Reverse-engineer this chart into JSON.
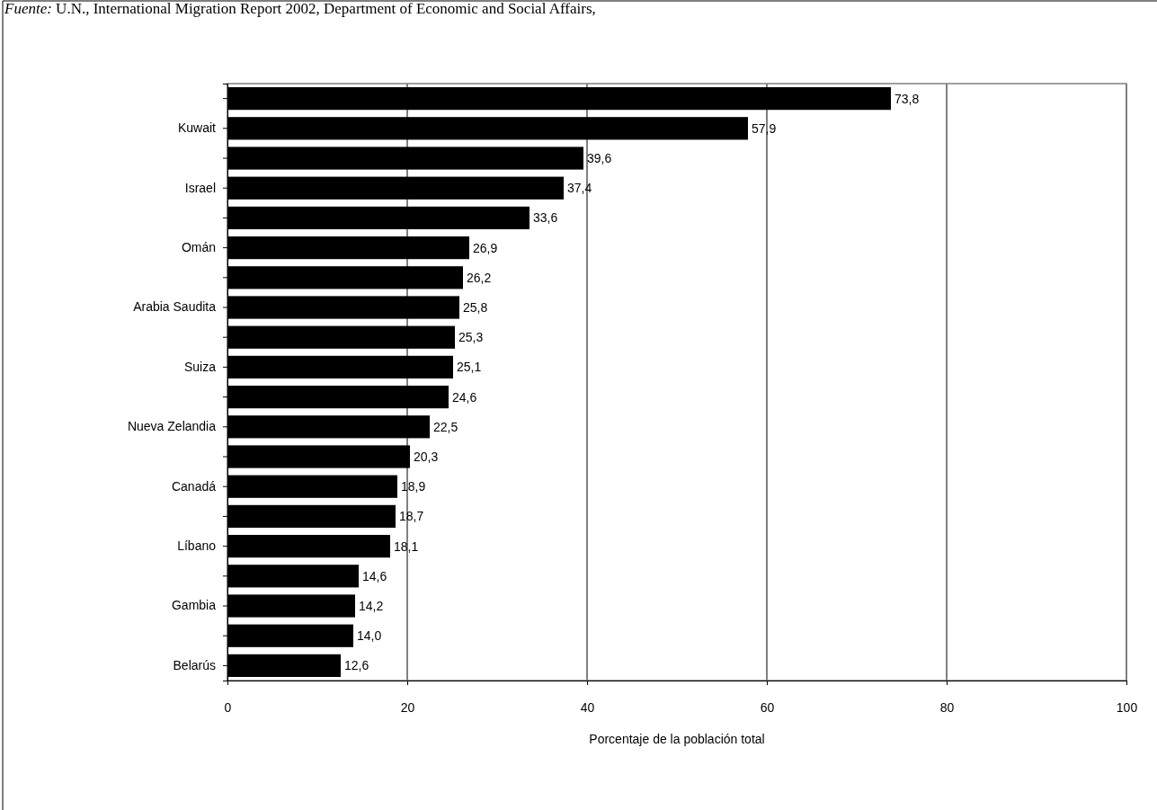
{
  "chart_data": {
    "type": "bar",
    "orientation": "horizontal",
    "categories": [
      null,
      "Kuwait",
      null,
      "Israel",
      null,
      "Omán",
      null,
      "Arabia Saudita",
      null,
      "Suiza",
      null,
      "Nueva Zelandia",
      null,
      "Canadá",
      null,
      "Líbano",
      null,
      "Gambia",
      null,
      "Belarús"
    ],
    "values": [
      73.8,
      57.9,
      39.6,
      37.4,
      33.6,
      26.9,
      26.2,
      25.8,
      25.3,
      25.1,
      24.6,
      22.5,
      20.3,
      18.9,
      18.7,
      18.1,
      14.6,
      14.2,
      14.0,
      12.6
    ],
    "value_labels": [
      "73,8",
      "57,9",
      "39,6",
      "37,4",
      "33,6",
      "26,9",
      "26,2",
      "25,8",
      "25,3",
      "25,1",
      "24,6",
      "22,5",
      "20,3",
      "18,9",
      "18,7",
      "18,1",
      "14,6",
      "14,2",
      "14,0",
      "12,6"
    ],
    "color": "#000000",
    "xlim": [
      0,
      100
    ],
    "xticks": [
      0,
      20,
      40,
      60,
      80,
      100
    ],
    "grid": "x",
    "xlabel": "Porcentaje de la población total",
    "annotations": [
      "Fuente: U.N., International Migration Report 2002, Department of Economic and Social Affairs,"
    ]
  }
}
